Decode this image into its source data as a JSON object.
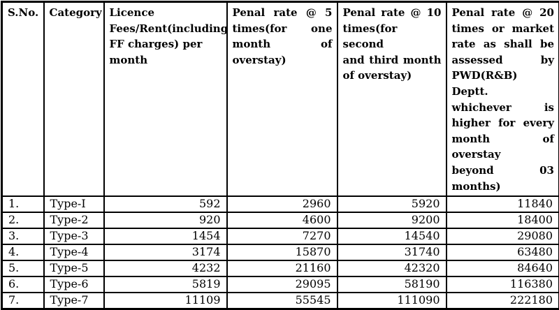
{
  "colors": {
    "border": "#000000",
    "text": "#000000",
    "background": "#ffffff"
  },
  "table": {
    "column_labels_full": [
      "S.No.",
      "Category",
      "Licence Fees/Rent(including FF charges) per month",
      "Penal rate @ 5 times(for one month of overstay)",
      "Penal rate @ 10 times(for second and third month of overstay)",
      "Penal rate @ 20 times or market rate as shall be assessed by PWD(R&B) Deptt. whichever is higher for every month of overstay beyond 03 months)"
    ],
    "header": {
      "sno": "S.No.",
      "category": "Category",
      "licence_lines": [
        "Licence",
        "Fees/Rent(including",
        "FF charges) per",
        "month"
      ],
      "penal5_lines": [
        "Penal rate @ 5",
        "times(for one",
        "month of",
        "overstay)"
      ],
      "penal10_lines": [
        "Penal rate @ 10",
        "times(for second",
        "and third month",
        "of overstay)"
      ],
      "penal20_lines": [
        "Penal rate @ 20",
        "times or market",
        "rate as shall be",
        "assessed by",
        "PWD(R&B) Deptt.",
        "whichever is",
        "higher for every",
        "month of overstay",
        "beyond 03",
        "months)"
      ]
    },
    "rows": [
      {
        "sno": "1.",
        "category": "Type-I",
        "licence": "592",
        "penal5": "2960",
        "penal10": "5920",
        "penal20": "11840"
      },
      {
        "sno": "2.",
        "category": "Type-2",
        "licence": "920",
        "penal5": "4600",
        "penal10": "9200",
        "penal20": "18400"
      },
      {
        "sno": "3.",
        "category": "Type-3",
        "licence": "1454",
        "penal5": "7270",
        "penal10": "14540",
        "penal20": "29080"
      },
      {
        "sno": "4.",
        "category": "Type-4",
        "licence": "3174",
        "penal5": "15870",
        "penal10": "31740",
        "penal20": "63480"
      },
      {
        "sno": "5.",
        "category": "Type-5",
        "licence": "4232",
        "penal5": "21160",
        "penal10": "42320",
        "penal20": "84640"
      },
      {
        "sno": "6.",
        "category": "Type-6",
        "licence": "5819",
        "penal5": "29095",
        "penal10": "58190",
        "penal20": "116380"
      },
      {
        "sno": "7.",
        "category": "Type-7",
        "licence": "11109",
        "penal5": "55545",
        "penal10": "111090",
        "penal20": "222180"
      }
    ]
  }
}
